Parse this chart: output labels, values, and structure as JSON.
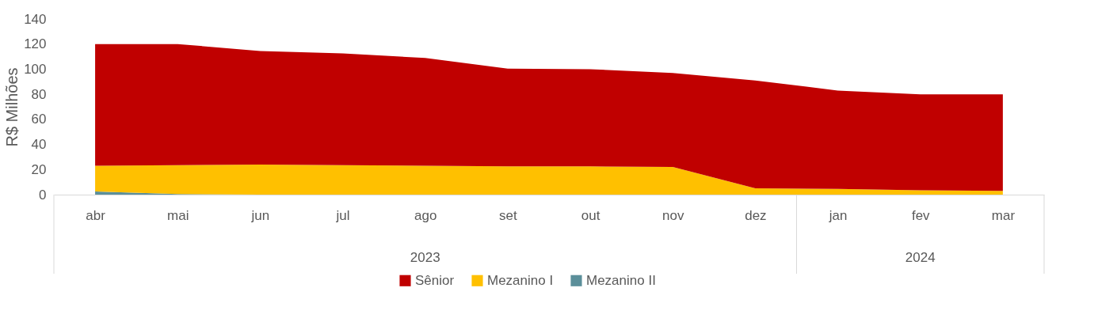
{
  "chart_data": {
    "type": "area",
    "stacked": true,
    "ylabel": "R$ Milhões",
    "categories": [
      "abr",
      "mai",
      "jun",
      "jul",
      "ago",
      "set",
      "out",
      "nov",
      "dez",
      "jan",
      "fev",
      "mar"
    ],
    "series": [
      {
        "name": "Mezanino II",
        "color": "#5b8f9a",
        "values": [
          2.5,
          0.5,
          0,
          0,
          0,
          0,
          0,
          0,
          0,
          0,
          0,
          0
        ]
      },
      {
        "name": "Mezanino I",
        "color": "#ffc000",
        "values": [
          20.5,
          23,
          24,
          23.5,
          23,
          22.5,
          22.5,
          22,
          5,
          4.5,
          3.5,
          3
        ]
      },
      {
        "name": "Sênior",
        "color": "#c00000",
        "values": [
          97,
          96.5,
          90.5,
          89,
          86,
          78,
          77.5,
          75,
          86,
          78.5,
          76.5,
          77
        ]
      }
    ],
    "ylim": [
      0,
      140
    ],
    "yticks": [
      0,
      20,
      40,
      60,
      80,
      100,
      120,
      140
    ],
    "grid": false,
    "legend": "bottom",
    "annotations": [
      "2023",
      "2024"
    ]
  }
}
